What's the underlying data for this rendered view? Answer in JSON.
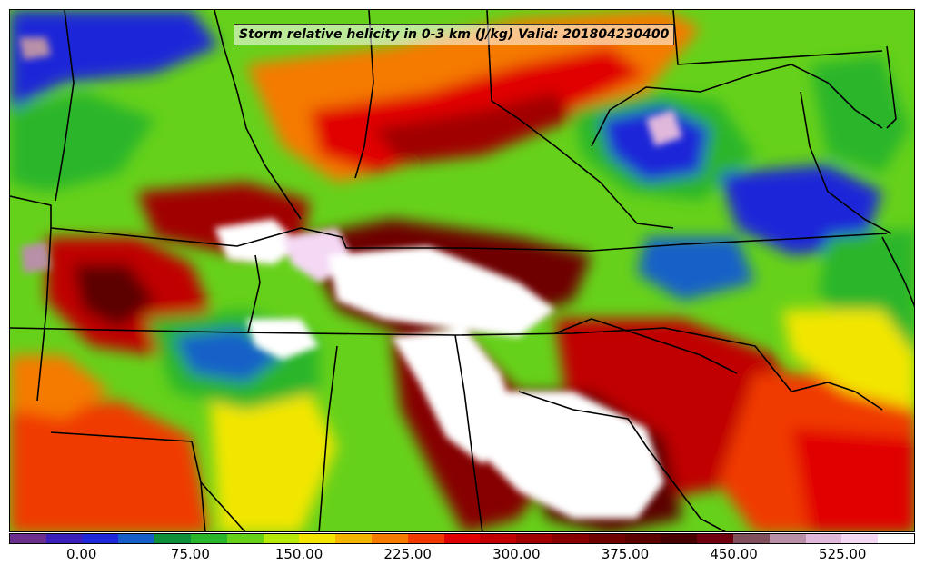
{
  "title": "Storm relative helicity in 0-3 km (J/kg) Valid: 201804230400",
  "colorbar": {
    "ticks": [
      "0.00",
      "75.00",
      "150.00",
      "225.00",
      "300.00",
      "375.00",
      "450.00",
      "525.00"
    ],
    "tick_values": [
      0,
      75,
      150,
      225,
      300,
      375,
      450,
      525
    ],
    "min": -50,
    "max": 575,
    "colors": [
      "#6b2f8f",
      "#3a1fb8",
      "#1e28d8",
      "#1560c8",
      "#0f8f3a",
      "#2bb52b",
      "#66d11a",
      "#b6e80a",
      "#f2e600",
      "#f5b400",
      "#f57a00",
      "#f03a00",
      "#e10000",
      "#c00000",
      "#a00000",
      "#860000",
      "#6e0000",
      "#5c0000",
      "#4a0000",
      "#700010",
      "#80505c",
      "#b890a8",
      "#e0b8dc",
      "#f4d8f4",
      "#ffffff"
    ]
  },
  "map": {
    "field": "storm relative helicity 0-3 km",
    "units": "J/kg",
    "valid_time": "201804230400"
  }
}
